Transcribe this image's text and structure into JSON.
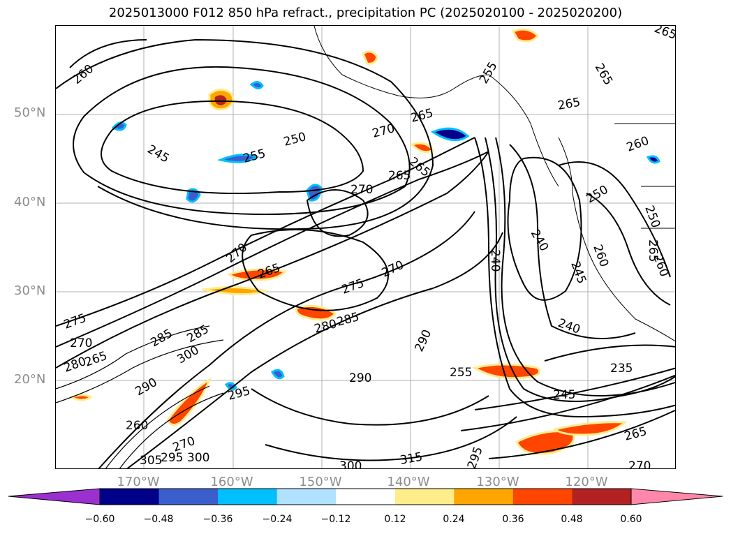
{
  "title": "2025013000 F012 850 hPa refract., precipitation PC (2025020100 - 2025020200)",
  "lat_labels": [
    "50°N",
    "40°N",
    "30°N",
    "20°N"
  ],
  "lon_labels": [
    "170°W",
    "160°W",
    "150°W",
    "140°W",
    "130°W",
    "120°W"
  ],
  "colorbar": {
    "ticks": [
      "−0.60",
      "−0.48",
      "−0.36",
      "−0.24",
      "−0.12",
      "0.12",
      "0.24",
      "0.36",
      "0.48",
      "0.60"
    ],
    "colors": [
      "#9b30d0",
      "#00008b",
      "#3a5fcd",
      "#00bfff",
      "#b0e2ff",
      "#ffffff",
      "#ffec8b",
      "#ffa500",
      "#ff4500",
      "#b22222",
      "#ff88aa"
    ]
  },
  "contour_labels": [
    {
      "text": "245"
    },
    {
      "text": "250"
    },
    {
      "text": "255"
    },
    {
      "text": "265"
    },
    {
      "text": "270"
    },
    {
      "text": "265"
    },
    {
      "text": "270"
    },
    {
      "text": "265"
    },
    {
      "text": "270"
    },
    {
      "text": "275"
    },
    {
      "text": "265"
    },
    {
      "text": "270"
    },
    {
      "text": "280"
    },
    {
      "text": "285"
    },
    {
      "text": "290"
    },
    {
      "text": "240"
    },
    {
      "text": "240"
    },
    {
      "text": "245"
    },
    {
      "text": "240"
    },
    {
      "text": "235"
    },
    {
      "text": "245"
    },
    {
      "text": "250"
    },
    {
      "text": "255"
    },
    {
      "text": "265"
    },
    {
      "text": "270"
    },
    {
      "text": "290"
    },
    {
      "text": "295"
    },
    {
      "text": "300"
    },
    {
      "text": "305"
    },
    {
      "text": "295"
    },
    {
      "text": "285"
    },
    {
      "text": "285"
    },
    {
      "text": "300"
    },
    {
      "text": "290"
    },
    {
      "text": "295"
    },
    {
      "text": "280"
    },
    {
      "text": "265"
    },
    {
      "text": "270"
    },
    {
      "text": "260"
    },
    {
      "text": "250"
    },
    {
      "text": "260"
    },
    {
      "text": "265"
    },
    {
      "text": "260"
    },
    {
      "text": "265"
    },
    {
      "text": "265"
    },
    {
      "text": "260"
    },
    {
      "text": "255"
    },
    {
      "text": "260"
    },
    {
      "text": "270"
    },
    {
      "text": "275"
    },
    {
      "text": "315"
    },
    {
      "text": "300"
    },
    {
      "text": "265"
    }
  ]
}
